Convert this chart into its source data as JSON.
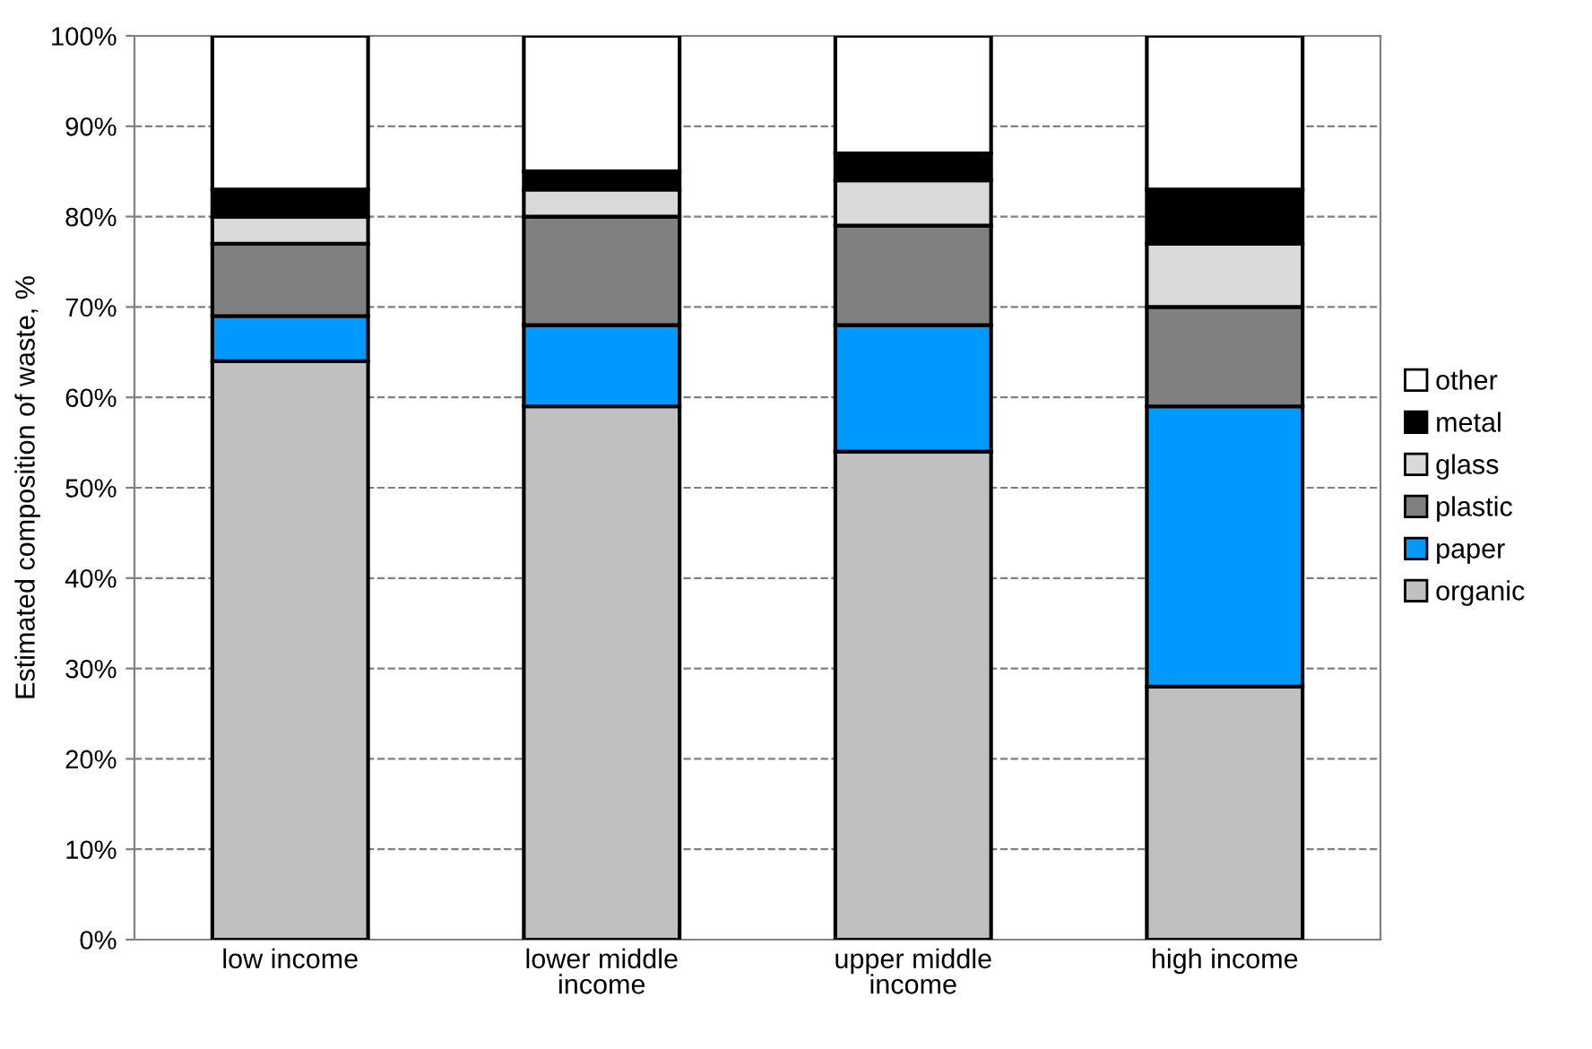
{
  "chart_data": {
    "type": "bar",
    "stacked": true,
    "ylabel": "Estimated composition of waste, %",
    "categories": [
      "low income",
      "lower middle\nincome",
      "upper middle\nincome",
      "high income"
    ],
    "series": [
      {
        "name": "organic",
        "color": "#c0c0c0",
        "values": [
          64,
          59,
          54,
          28
        ]
      },
      {
        "name": "paper",
        "color": "#0099ff",
        "values": [
          5,
          9,
          14,
          31
        ]
      },
      {
        "name": "plastic",
        "color": "#808080",
        "values": [
          8,
          12,
          11,
          11
        ]
      },
      {
        "name": "glass",
        "color": "#d9d9d9",
        "values": [
          3,
          3,
          5,
          7
        ]
      },
      {
        "name": "metal",
        "color": "#000000",
        "values": [
          3,
          2,
          3,
          6
        ]
      },
      {
        "name": "other",
        "color": "#ffffff",
        "values": [
          17,
          15,
          13,
          17
        ]
      }
    ],
    "ylim": [
      0,
      100
    ],
    "yticks": [
      {
        "value": 0,
        "label": "0%"
      },
      {
        "value": 10,
        "label": "10%"
      },
      {
        "value": 20,
        "label": "20%"
      },
      {
        "value": 30,
        "label": "30%"
      },
      {
        "value": 40,
        "label": "40%"
      },
      {
        "value": 50,
        "label": "50%"
      },
      {
        "value": 60,
        "label": "60%"
      },
      {
        "value": 70,
        "label": "70%"
      },
      {
        "value": 80,
        "label": "80%"
      },
      {
        "value": 90,
        "label": "90%"
      },
      {
        "value": 100,
        "label": "100%"
      }
    ],
    "grid": "y",
    "legend": "right"
  }
}
